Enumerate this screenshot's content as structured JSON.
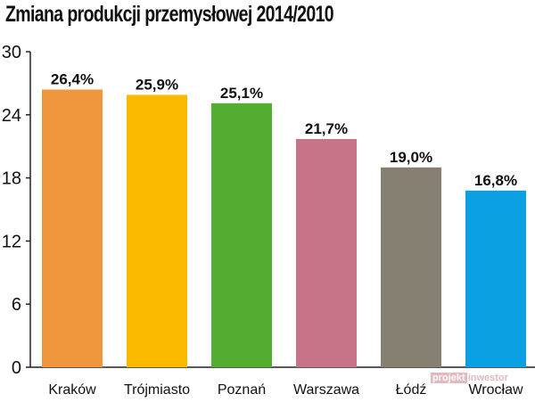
{
  "chart_data": {
    "type": "bar",
    "title": "Zmiana produkcji przemysłowej 2014/2010",
    "xlabel": "",
    "ylabel": "",
    "ylim": [
      0,
      30
    ],
    "yticks": [
      0,
      6,
      12,
      18,
      24,
      30
    ],
    "grid": false,
    "legend": "none",
    "categories": [
      "Kraków",
      "Trójmiasto",
      "Poznań",
      "Warszawa",
      "Łódź",
      "Wrocław"
    ],
    "values": [
      26.4,
      25.9,
      25.1,
      21.7,
      19.0,
      16.8
    ],
    "value_labels": [
      "26,4%",
      "25,9%",
      "25,1%",
      "21,7%",
      "19,0%",
      "16,8%"
    ],
    "colors": [
      "#f0963c",
      "#fbb900",
      "#52ad31",
      "#c77489",
      "#858071",
      "#0aa0e1"
    ]
  },
  "watermark": {
    "part1": "projekt",
    "part2": "inwestor"
  }
}
